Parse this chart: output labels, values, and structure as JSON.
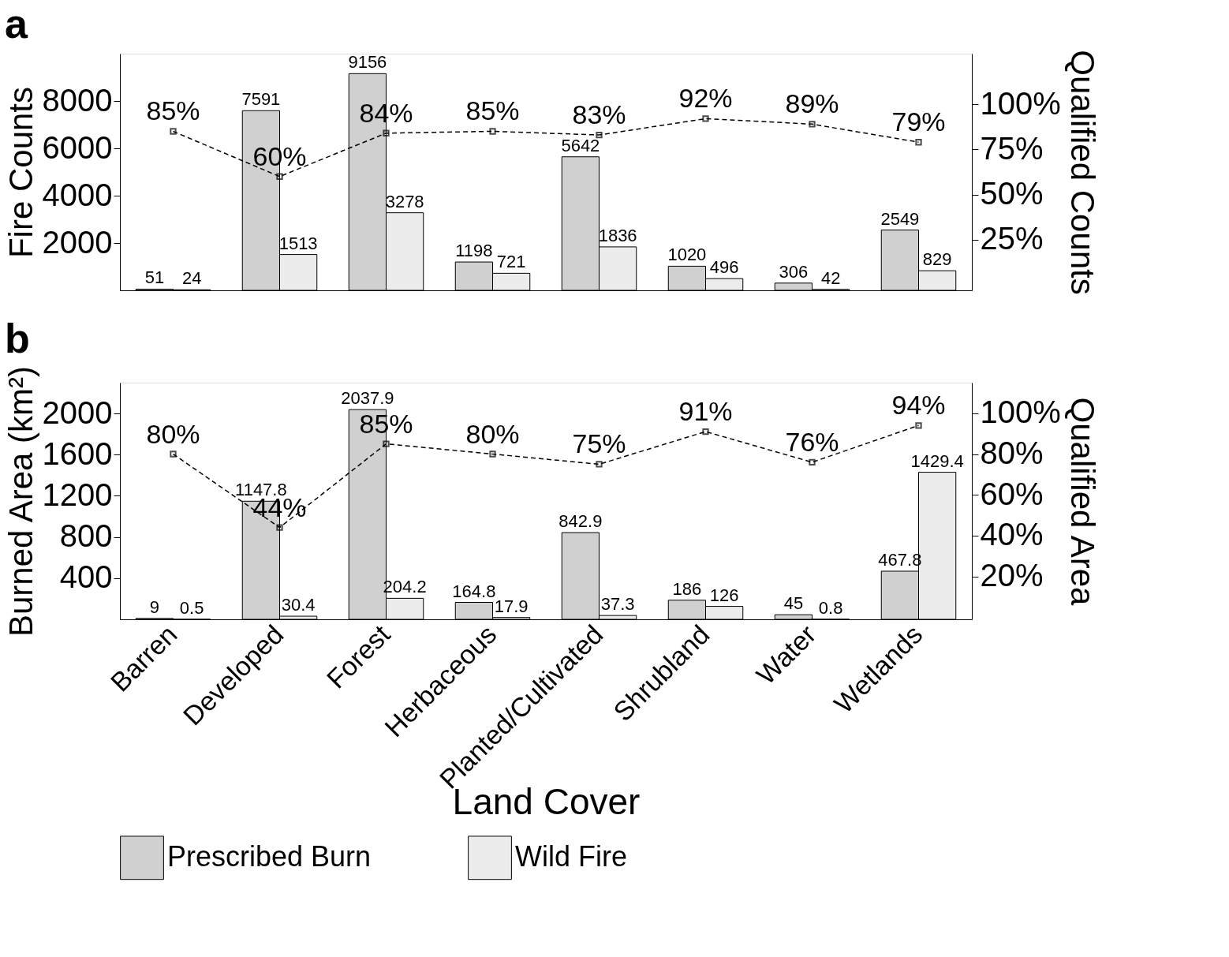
{
  "chart_data": [
    {
      "type": "bar",
      "title": "a",
      "ylabel": "Fire Counts",
      "y2label": "Qualified Counts",
      "categories": [
        "Barren",
        "Developed",
        "Forest",
        "Herbaceous",
        "Planted/Cultivated",
        "Shrubland",
        "Water",
        "Wetlands"
      ],
      "tick_labels": "y",
      "legend": "bottom",
      "data_labels": true,
      "ylim": [
        0,
        10000
      ],
      "yticks": [
        2000,
        4000,
        6000,
        8000
      ],
      "y2lim": [
        -3,
        128
      ],
      "y2ticks": [
        {
          "value": 25,
          "label": "25%"
        },
        {
          "value": 50,
          "label": "50%"
        },
        {
          "value": 75,
          "label": "75%"
        },
        {
          "value": 100,
          "label": "100%"
        }
      ],
      "series": [
        {
          "name": "Prescribed Burn",
          "color": "#d0d0d0",
          "values": [
            51,
            7591,
            9156,
            1198,
            5642,
            1020,
            306,
            2549
          ]
        },
        {
          "name": "Wild Fire",
          "color": "#ececec",
          "values": [
            24,
            1513,
            3278,
            721,
            1836,
            496,
            42,
            829
          ]
        },
        {
          "type": "line",
          "axis": "y2",
          "color": "#000000",
          "marker": "square",
          "line_style": "dashed",
          "values": [
            85,
            60,
            84,
            85,
            83,
            92,
            89,
            79
          ],
          "value_labels": [
            "85%",
            "60%",
            "84%",
            "85%",
            "83%",
            "92%",
            "89%",
            "79%"
          ]
        }
      ]
    },
    {
      "type": "bar",
      "title": "b",
      "ylabel": "Burned Area (km²)",
      "y2label": "Qualified Area",
      "xlabel": "Land Cover",
      "categories": [
        "Barren",
        "Developed",
        "Forest",
        "Herbaceous",
        "Planted/Cultivated",
        "Shrubland",
        "Water",
        "Wetlands"
      ],
      "legend": "bottom",
      "data_labels": true,
      "ylim": [
        0,
        2300
      ],
      "yticks": [
        400,
        800,
        1200,
        1600,
        2000
      ],
      "y2lim": [
        -1,
        115
      ],
      "y2ticks": [
        {
          "value": 20,
          "label": "20%"
        },
        {
          "value": 40,
          "label": "40%"
        },
        {
          "value": 60,
          "label": "60%"
        },
        {
          "value": 80,
          "label": "80%"
        },
        {
          "value": 100,
          "label": "100%"
        }
      ],
      "series": [
        {
          "name": "Prescribed Burn",
          "color": "#d0d0d0",
          "values": [
            9,
            1147.8,
            2037.9,
            164.8,
            842.9,
            186,
            45,
            467.8
          ]
        },
        {
          "name": "Wild Fire",
          "color": "#ececec",
          "values": [
            0.5,
            30.4,
            204.2,
            17.9,
            37.3,
            126,
            0.8,
            1429.4
          ]
        },
        {
          "type": "line",
          "axis": "y2",
          "color": "#000000",
          "marker": "square",
          "line_style": "dashed",
          "values": [
            80,
            44,
            85,
            80,
            75,
            91,
            76,
            94
          ],
          "value_labels": [
            "80%",
            "44%",
            "85%",
            "80%",
            "75%",
            "91%",
            "76%",
            "94%"
          ]
        }
      ]
    }
  ]
}
